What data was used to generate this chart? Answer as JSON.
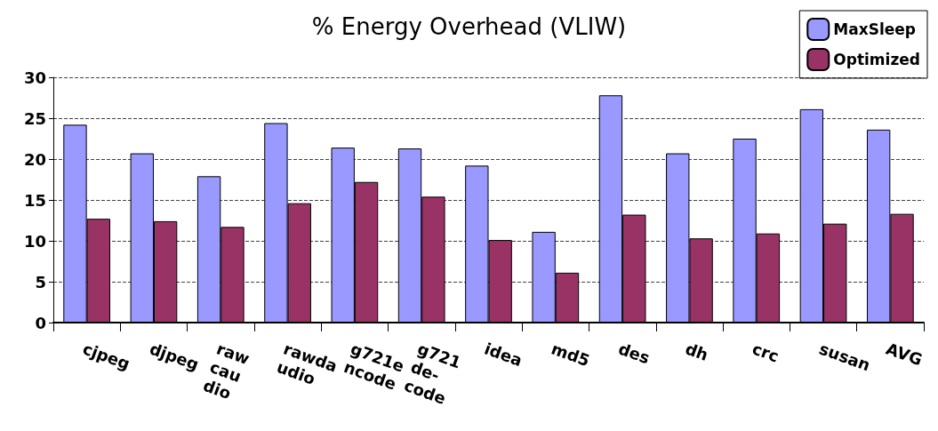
{
  "chart_data": {
    "type": "bar",
    "title": "% Energy Overhead (VLIW)",
    "categories": [
      "cjpeg",
      "djpeg",
      "raw\ncau\ndio",
      "rawda\nudio",
      "g721e\nncode",
      "g721\nde-\ncode",
      "idea",
      "md5",
      "des",
      "dh",
      "crc",
      "susan",
      "AVG"
    ],
    "series": [
      {
        "name": "MaxSleep",
        "color": "#9999ff",
        "values": [
          24.2,
          20.7,
          17.9,
          24.4,
          21.4,
          21.3,
          19.2,
          11.1,
          27.8,
          20.7,
          22.5,
          26.1,
          23.6
        ]
      },
      {
        "name": "Optimized",
        "color": "#993366",
        "values": [
          12.7,
          12.4,
          11.7,
          14.6,
          17.2,
          15.4,
          10.1,
          6.1,
          13.2,
          10.3,
          10.9,
          12.1,
          13.3
        ]
      }
    ],
    "ylim": [
      0,
      30
    ],
    "yticks": [
      0,
      5,
      10,
      15,
      20,
      25,
      30
    ],
    "grid": "y",
    "legend": "top right"
  }
}
